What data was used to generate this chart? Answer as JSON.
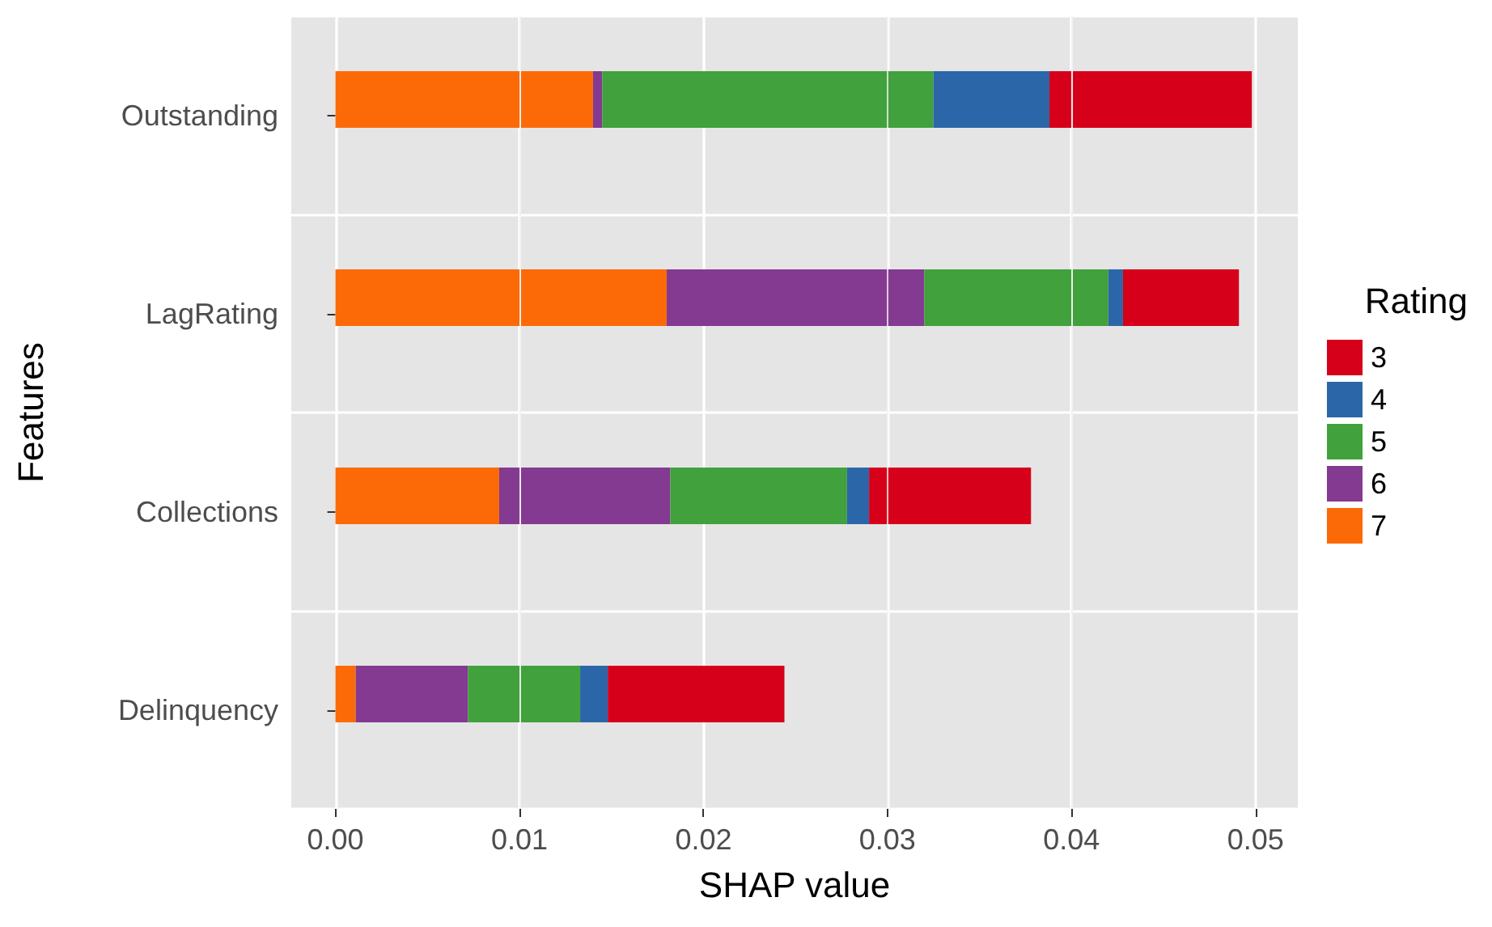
{
  "chart_data": {
    "type": "bar",
    "orientation": "horizontal",
    "stacked": true,
    "xlabel": "SHAP value",
    "ylabel": "Features",
    "legend_title": "Rating",
    "legend": "right",
    "grid": true,
    "categories": [
      "Outstanding",
      "LagRating",
      "Collections",
      "Delinquency"
    ],
    "xlim": [
      -0.0024,
      0.0523
    ],
    "xticks": [
      {
        "value": 0,
        "label": "0.00"
      },
      {
        "value": 0.01,
        "label": "0.01"
      },
      {
        "value": 0.02,
        "label": "0.02"
      },
      {
        "value": 0.03,
        "label": "0.03"
      },
      {
        "value": 0.04,
        "label": "0.04"
      },
      {
        "value": 0.05,
        "label": "0.05"
      }
    ],
    "series": [
      {
        "name": "7",
        "color": "#fc6a08",
        "values": [
          0.014,
          0.018,
          0.0089,
          0.0011
        ]
      },
      {
        "name": "6",
        "color": "#843a91",
        "values": [
          0.0005,
          0.014,
          0.0093,
          0.0061
        ]
      },
      {
        "name": "5",
        "color": "#41a13c",
        "values": [
          0.018,
          0.01,
          0.0096,
          0.0061
        ]
      },
      {
        "name": "4",
        "color": "#2b67a8",
        "values": [
          0.0063,
          0.0008,
          0.0012,
          0.0015
        ]
      },
      {
        "name": "3",
        "color": "#d7001a",
        "values": [
          0.011,
          0.0063,
          0.0088,
          0.0096
        ]
      }
    ]
  }
}
